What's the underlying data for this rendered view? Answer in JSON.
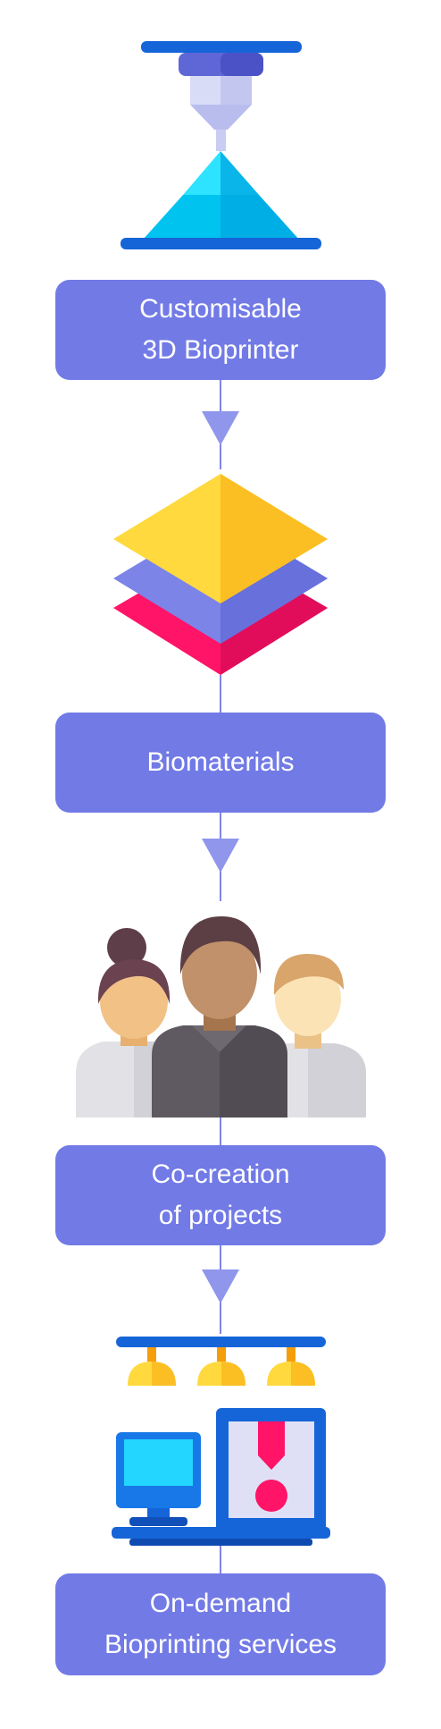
{
  "flow": {
    "steps": [
      {
        "label": "Customisable\n3D Bioprinter",
        "icon": "bioprinter-icon"
      },
      {
        "label": "Biomaterials",
        "icon": "biomaterial-layers-icon"
      },
      {
        "label": "Co-creation\nof projects",
        "icon": "team-people-icon"
      },
      {
        "label": "On-demand\nBioprinting services",
        "icon": "bioprinting-lab-icon"
      }
    ],
    "connector_icon": "arrow-down-icon"
  },
  "colors": {
    "box": "#727ae6",
    "connector": "#7f86e8",
    "arrow": "#8f96ec",
    "text": "#ffffff"
  }
}
